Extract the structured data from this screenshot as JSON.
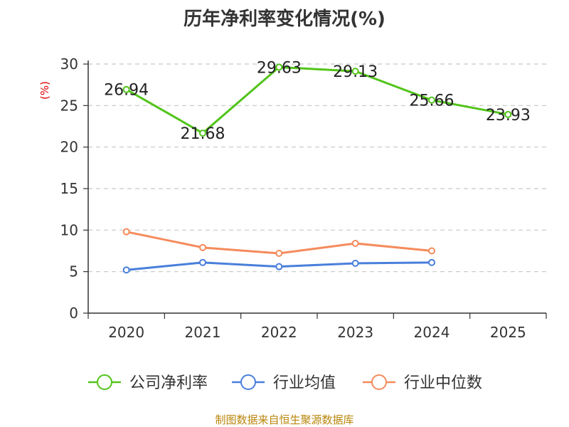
{
  "chart_data": {
    "type": "line",
    "title": "历年净利率变化情况(%)",
    "ylabel": "(%)",
    "xlabel": "",
    "categories": [
      "2020",
      "2021",
      "2022",
      "2023",
      "2024",
      "2025"
    ],
    "ylim": [
      0,
      30
    ],
    "yticks": [
      0,
      5,
      10,
      15,
      20,
      25,
      30
    ],
    "grid": true,
    "legend_position": "bottom",
    "series": [
      {
        "name": "公司净利率",
        "color": "#52c41a",
        "values": [
          26.94,
          21.68,
          29.63,
          29.13,
          25.66,
          23.93
        ],
        "labels": [
          "26.94",
          "21.68",
          "29.63",
          "29.13",
          "25.66",
          "23.93"
        ]
      },
      {
        "name": "行业均值",
        "color": "#4a7fdb",
        "values": [
          5.2,
          6.1,
          5.6,
          6.0,
          6.1,
          null
        ]
      },
      {
        "name": "行业中位数",
        "color": "#f58b5c",
        "values": [
          9.8,
          7.9,
          7.2,
          8.4,
          7.5,
          null
        ]
      }
    ]
  },
  "footer": {
    "source": "制图数据来自恒生聚源数据库"
  }
}
